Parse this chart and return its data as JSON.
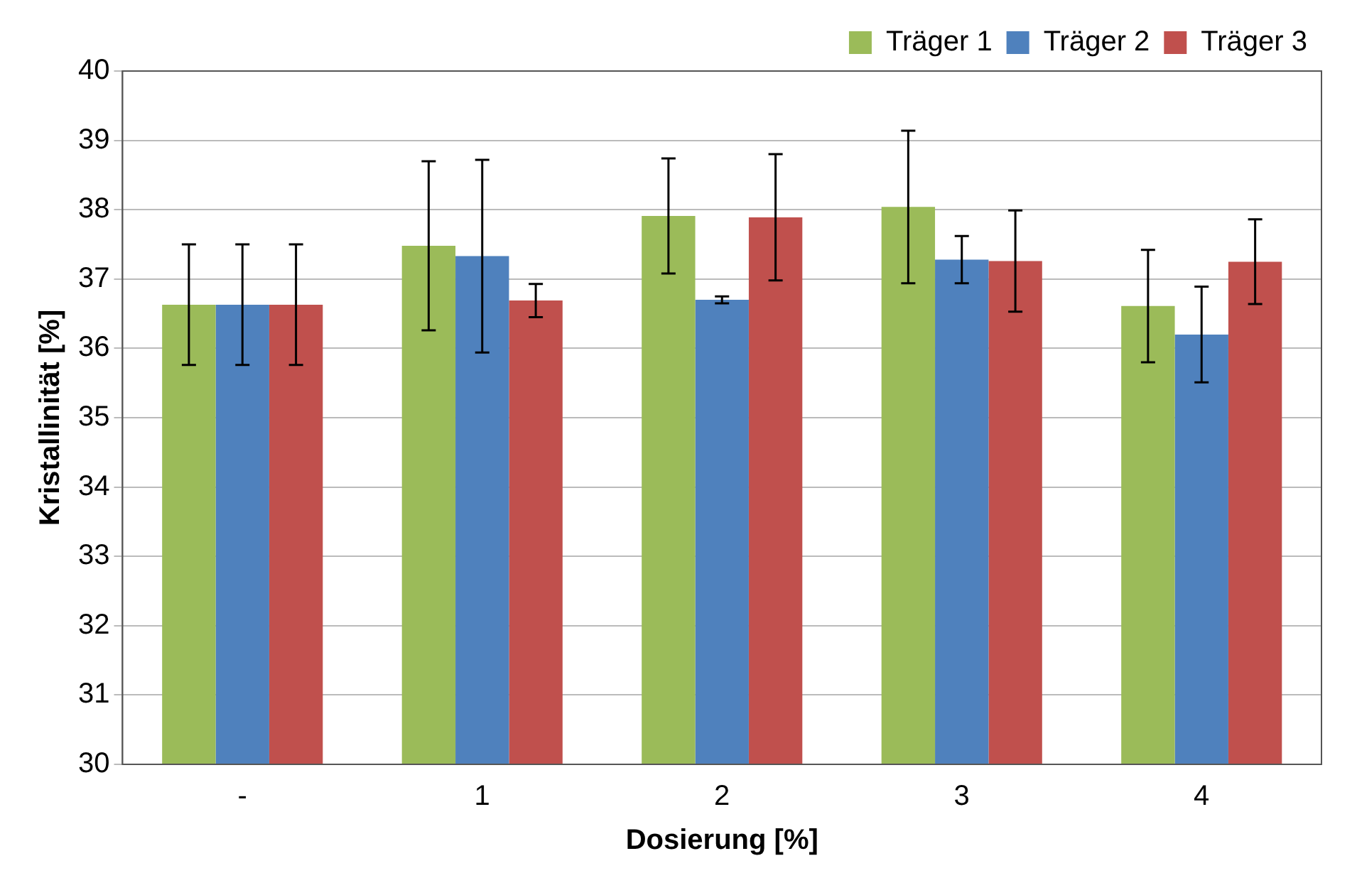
{
  "chart_data": {
    "type": "bar",
    "xlabel": "Dosierung [%]",
    "ylabel": "Kristallinität [%]",
    "categories": [
      "-",
      "1",
      "2",
      "3",
      "4"
    ],
    "series": [
      {
        "name": "Träger 1",
        "color": "#9bbb59",
        "values": [
          36.63,
          37.48,
          37.91,
          38.04,
          36.61
        ],
        "errors": [
          0.87,
          1.22,
          0.83,
          1.1,
          0.81
        ]
      },
      {
        "name": "Träger 2",
        "color": "#4f81bd",
        "values": [
          36.63,
          37.33,
          36.7,
          37.28,
          36.2
        ],
        "errors": [
          0.87,
          1.39,
          0.05,
          0.34,
          0.69
        ]
      },
      {
        "name": "Träger 3",
        "color": "#c0504d",
        "values": [
          36.63,
          36.69,
          37.89,
          37.26,
          37.25
        ],
        "errors": [
          0.87,
          0.24,
          0.91,
          0.73,
          0.61
        ]
      }
    ],
    "ylim": [
      30,
      40
    ],
    "yticks": [
      30,
      31,
      32,
      33,
      34,
      35,
      36,
      37,
      38,
      39,
      40
    ],
    "grid": "y",
    "legend": "top right"
  }
}
